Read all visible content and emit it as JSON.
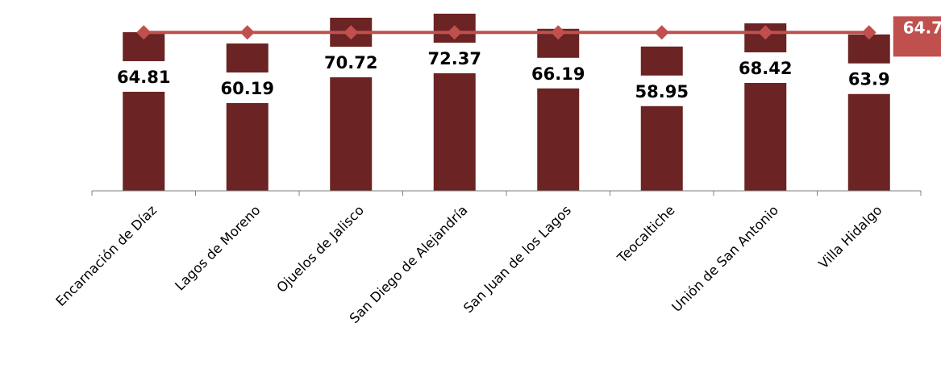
{
  "chart_data": {
    "type": "bar",
    "title": "",
    "xlabel": "",
    "ylabel": "",
    "categories": [
      "Encarnación de Díaz",
      "Lagos de Moreno",
      "Ojuelos de Jalisco",
      "San Diego de Alejandría",
      "San Juan de los Lagos",
      "Teocaltiche",
      "Unión de San Antonio",
      "Villa Hidalgo"
    ],
    "values": [
      64.81,
      60.19,
      70.72,
      72.37,
      66.19,
      58.95,
      68.42,
      63.9
    ],
    "value_labels": [
      "64.81",
      "60.19",
      "70.72",
      "72.37",
      "66.19",
      "58.95",
      "68.42",
      "63.9"
    ],
    "reference_line": {
      "value": 64.7,
      "label": "64.7"
    },
    "ylim": [
      0,
      75
    ],
    "grid": false,
    "legend": "none"
  },
  "colors": {
    "bar": "#6B2323",
    "line": "#C0504D",
    "marker": "#C0504D",
    "label_bg": "#C0504D",
    "axis": "#7F7F7F"
  }
}
